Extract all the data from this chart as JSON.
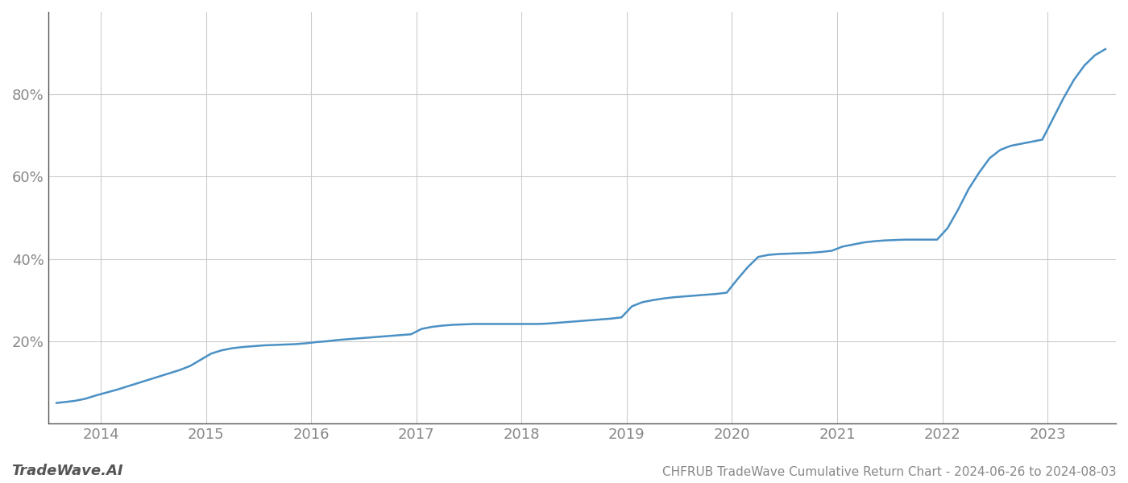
{
  "title": "CHFRUB TradeWave Cumulative Return Chart - 2024-06-26 to 2024-08-03",
  "watermark": "TradeWave.AI",
  "line_color": "#4a90c4",
  "background_color": "#ffffff",
  "grid_color": "#cccccc",
  "axis_color": "#555555",
  "tick_color": "#888888",
  "x_values": [
    2013.58,
    2013.65,
    2013.75,
    2013.85,
    2013.95,
    2014.05,
    2014.15,
    2014.25,
    2014.35,
    2014.45,
    2014.55,
    2014.65,
    2014.75,
    2014.85,
    2014.95,
    2015.05,
    2015.15,
    2015.25,
    2015.35,
    2015.45,
    2015.55,
    2015.65,
    2015.75,
    2015.85,
    2015.95,
    2016.05,
    2016.15,
    2016.25,
    2016.35,
    2016.45,
    2016.55,
    2016.65,
    2016.75,
    2016.85,
    2016.95,
    2017.05,
    2017.15,
    2017.25,
    2017.35,
    2017.45,
    2017.55,
    2017.65,
    2017.75,
    2017.85,
    2017.95,
    2018.05,
    2018.15,
    2018.25,
    2018.35,
    2018.45,
    2018.55,
    2018.65,
    2018.75,
    2018.85,
    2018.95,
    2019.05,
    2019.15,
    2019.25,
    2019.35,
    2019.45,
    2019.55,
    2019.65,
    2019.75,
    2019.85,
    2019.95,
    2020.05,
    2020.15,
    2020.25,
    2020.35,
    2020.45,
    2020.55,
    2020.65,
    2020.75,
    2020.85,
    2020.95,
    2021.05,
    2021.15,
    2021.25,
    2021.35,
    2021.45,
    2021.55,
    2021.65,
    2021.75,
    2021.85,
    2021.95,
    2022.05,
    2022.15,
    2022.25,
    2022.35,
    2022.45,
    2022.55,
    2022.65,
    2022.75,
    2022.85,
    2022.95,
    2023.05,
    2023.15,
    2023.25,
    2023.35,
    2023.45,
    2023.55
  ],
  "y_values": [
    5.0,
    5.2,
    5.5,
    6.0,
    6.8,
    7.5,
    8.2,
    9.0,
    9.8,
    10.6,
    11.4,
    12.2,
    13.0,
    14.0,
    15.5,
    17.0,
    17.8,
    18.3,
    18.6,
    18.8,
    19.0,
    19.1,
    19.2,
    19.3,
    19.5,
    19.8,
    20.0,
    20.3,
    20.5,
    20.7,
    20.9,
    21.1,
    21.3,
    21.5,
    21.7,
    23.0,
    23.5,
    23.8,
    24.0,
    24.1,
    24.2,
    24.2,
    24.2,
    24.2,
    24.2,
    24.2,
    24.2,
    24.3,
    24.5,
    24.7,
    24.9,
    25.1,
    25.3,
    25.5,
    25.8,
    28.5,
    29.5,
    30.0,
    30.4,
    30.7,
    30.9,
    31.1,
    31.3,
    31.5,
    31.8,
    35.0,
    38.0,
    40.5,
    41.0,
    41.2,
    41.3,
    41.4,
    41.5,
    41.7,
    42.0,
    43.0,
    43.5,
    44.0,
    44.3,
    44.5,
    44.6,
    44.7,
    44.7,
    44.7,
    44.7,
    47.5,
    52.0,
    57.0,
    61.0,
    64.5,
    66.5,
    67.5,
    68.0,
    68.5,
    69.0,
    74.0,
    79.0,
    83.5,
    87.0,
    89.5,
    91.0
  ],
  "xlim": [
    2013.5,
    2023.65
  ],
  "ylim": [
    0,
    100
  ],
  "yticks": [
    20,
    40,
    60,
    80
  ],
  "xticks": [
    2014,
    2015,
    2016,
    2017,
    2018,
    2019,
    2020,
    2021,
    2022,
    2023
  ],
  "title_fontsize": 11,
  "tick_fontsize": 13,
  "watermark_fontsize": 13,
  "line_width": 1.8
}
